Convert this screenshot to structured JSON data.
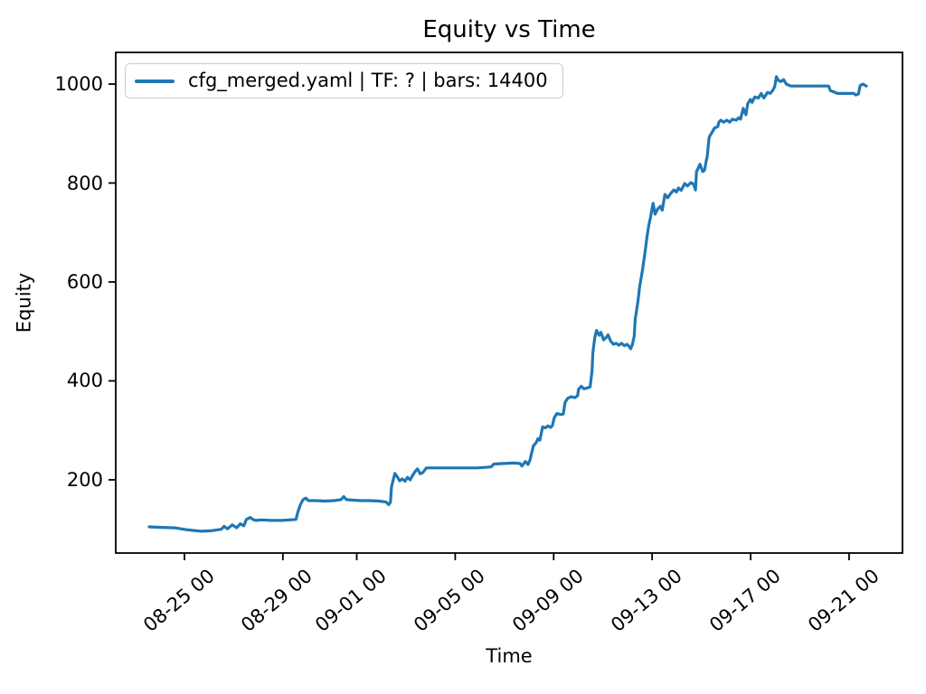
{
  "figure": {
    "title": "Equity vs Time",
    "xlabel": "Time",
    "ylabel": "Equity",
    "legend": {
      "label": "cfg_merged.yaml | TF: ? | bars: 14400",
      "line_color": "#1f77b4"
    }
  },
  "chart_data": {
    "type": "line",
    "title": "Equity vs Time",
    "xlabel": "Time",
    "ylabel": "Equity",
    "grid": false,
    "legend_position": "upper left",
    "x_unit": "days relative to 08-25 00:00",
    "xlim": [
      -2.79,
      29.17
    ],
    "ylim": [
      52,
      1064
    ],
    "x_ticks": [
      {
        "t": 0,
        "label": "08-25 00"
      },
      {
        "t": 4,
        "label": "08-29 00"
      },
      {
        "t": 7,
        "label": "09-01 00"
      },
      {
        "t": 11,
        "label": "09-05 00"
      },
      {
        "t": 15,
        "label": "09-09 00"
      },
      {
        "t": 19,
        "label": "09-13 00"
      },
      {
        "t": 23,
        "label": "09-17 00"
      },
      {
        "t": 27,
        "label": "09-21 00"
      }
    ],
    "y_ticks": [
      200,
      400,
      600,
      800,
      1000
    ],
    "series": [
      {
        "name": "cfg_merged.yaml | TF: ? | bars: 14400",
        "color": "#1f77b4",
        "points": [
          [
            -1.43,
            105
          ],
          [
            -1.06,
            104
          ],
          [
            -0.4,
            103
          ],
          [
            0.11,
            99
          ],
          [
            0.69,
            96
          ],
          [
            1.06,
            97
          ],
          [
            1.5,
            100
          ],
          [
            1.61,
            106
          ],
          [
            1.75,
            101
          ],
          [
            1.94,
            109
          ],
          [
            2.12,
            103
          ],
          [
            2.27,
            111
          ],
          [
            2.41,
            107
          ],
          [
            2.52,
            120
          ],
          [
            2.67,
            124
          ],
          [
            2.78,
            120
          ],
          [
            2.89,
            118
          ],
          [
            3.14,
            119
          ],
          [
            3.51,
            118
          ],
          [
            3.98,
            118
          ],
          [
            4.53,
            120
          ],
          [
            4.61,
            135
          ],
          [
            4.71,
            150
          ],
          [
            4.82,
            160
          ],
          [
            4.93,
            163
          ],
          [
            5.04,
            158
          ],
          [
            5.34,
            158
          ],
          [
            5.7,
            157
          ],
          [
            6.07,
            158
          ],
          [
            6.36,
            160
          ],
          [
            6.47,
            166
          ],
          [
            6.58,
            160
          ],
          [
            6.8,
            159
          ],
          [
            7.16,
            158
          ],
          [
            7.53,
            158
          ],
          [
            7.9,
            157
          ],
          [
            8.19,
            155
          ],
          [
            8.3,
            150
          ],
          [
            8.37,
            155
          ],
          [
            8.41,
            185
          ],
          [
            8.48,
            200
          ],
          [
            8.55,
            213
          ],
          [
            8.66,
            205
          ],
          [
            8.74,
            198
          ],
          [
            8.85,
            202
          ],
          [
            8.96,
            197
          ],
          [
            9.06,
            205
          ],
          [
            9.17,
            200
          ],
          [
            9.28,
            210
          ],
          [
            9.39,
            218
          ],
          [
            9.47,
            222
          ],
          [
            9.58,
            212
          ],
          [
            9.69,
            215
          ],
          [
            9.83,
            224
          ],
          [
            10.45,
            224
          ],
          [
            11.18,
            224
          ],
          [
            11.91,
            224
          ],
          [
            12.46,
            226
          ],
          [
            12.57,
            232
          ],
          [
            13.01,
            233
          ],
          [
            13.38,
            234
          ],
          [
            13.63,
            233
          ],
          [
            13.71,
            228
          ],
          [
            13.85,
            237
          ],
          [
            13.96,
            231
          ],
          [
            14.04,
            240
          ],
          [
            14.11,
            255
          ],
          [
            14.18,
            269
          ],
          [
            14.29,
            275
          ],
          [
            14.36,
            283
          ],
          [
            14.44,
            280
          ],
          [
            14.55,
            307
          ],
          [
            14.66,
            305
          ],
          [
            14.77,
            309
          ],
          [
            14.88,
            306
          ],
          [
            14.95,
            310
          ],
          [
            15.02,
            325
          ],
          [
            15.13,
            334
          ],
          [
            15.28,
            332
          ],
          [
            15.39,
            333
          ],
          [
            15.46,
            356
          ],
          [
            15.57,
            365
          ],
          [
            15.72,
            368
          ],
          [
            15.86,
            366
          ],
          [
            15.97,
            370
          ],
          [
            16.01,
            383
          ],
          [
            16.12,
            389
          ],
          [
            16.23,
            384
          ],
          [
            16.37,
            386
          ],
          [
            16.48,
            388
          ],
          [
            16.56,
            420
          ],
          [
            16.59,
            457
          ],
          [
            16.67,
            487
          ],
          [
            16.74,
            502
          ],
          [
            16.85,
            492
          ],
          [
            16.92,
            498
          ],
          [
            17.03,
            483
          ],
          [
            17.14,
            488
          ],
          [
            17.21,
            493
          ],
          [
            17.32,
            480
          ],
          [
            17.43,
            474
          ],
          [
            17.54,
            476
          ],
          [
            17.65,
            472
          ],
          [
            17.76,
            476
          ],
          [
            17.87,
            471
          ],
          [
            17.98,
            474
          ],
          [
            18.06,
            470
          ],
          [
            18.13,
            465
          ],
          [
            18.2,
            474
          ],
          [
            18.27,
            490
          ],
          [
            18.31,
            524
          ],
          [
            18.42,
            560
          ],
          [
            18.49,
            590
          ],
          [
            18.6,
            622
          ],
          [
            18.71,
            660
          ],
          [
            18.79,
            690
          ],
          [
            18.86,
            713
          ],
          [
            18.93,
            730
          ],
          [
            19.04,
            759
          ],
          [
            19.12,
            737
          ],
          [
            19.23,
            748
          ],
          [
            19.34,
            753
          ],
          [
            19.41,
            745
          ],
          [
            19.52,
            777
          ],
          [
            19.63,
            770
          ],
          [
            19.74,
            778
          ],
          [
            19.88,
            786
          ],
          [
            19.99,
            782
          ],
          [
            20.07,
            790
          ],
          [
            20.18,
            785
          ],
          [
            20.32,
            799
          ],
          [
            20.43,
            794
          ],
          [
            20.58,
            801
          ],
          [
            20.69,
            797
          ],
          [
            20.76,
            786
          ],
          [
            20.8,
            823
          ],
          [
            20.87,
            830
          ],
          [
            20.94,
            838
          ],
          [
            21.02,
            828
          ],
          [
            21.05,
            823
          ],
          [
            21.13,
            826
          ],
          [
            21.2,
            845
          ],
          [
            21.24,
            854
          ],
          [
            21.31,
            890
          ],
          [
            21.35,
            896
          ],
          [
            21.42,
            901
          ],
          [
            21.53,
            911
          ],
          [
            21.67,
            914
          ],
          [
            21.71,
            923
          ],
          [
            21.79,
            927
          ],
          [
            21.9,
            923
          ],
          [
            22.04,
            927
          ],
          [
            22.15,
            923
          ],
          [
            22.26,
            929
          ],
          [
            22.41,
            927
          ],
          [
            22.52,
            932
          ],
          [
            22.59,
            929
          ],
          [
            22.7,
            951
          ],
          [
            22.77,
            942
          ],
          [
            22.81,
            938
          ],
          [
            22.88,
            960
          ],
          [
            22.99,
            969
          ],
          [
            23.06,
            963
          ],
          [
            23.17,
            974
          ],
          [
            23.32,
            972
          ],
          [
            23.43,
            981
          ],
          [
            23.54,
            972
          ],
          [
            23.69,
            983
          ],
          [
            23.8,
            981
          ],
          [
            23.91,
            988
          ],
          [
            23.98,
            995
          ],
          [
            24.05,
            1015
          ],
          [
            24.12,
            1008
          ],
          [
            24.23,
            1005
          ],
          [
            24.34,
            1009
          ],
          [
            24.45,
            1000
          ],
          [
            24.63,
            996
          ],
          [
            25.07,
            996
          ],
          [
            25.62,
            996
          ],
          [
            26.17,
            996
          ],
          [
            26.24,
            987
          ],
          [
            26.39,
            984
          ],
          [
            26.53,
            981
          ],
          [
            26.9,
            981
          ],
          [
            27.19,
            981
          ],
          [
            27.27,
            978
          ],
          [
            27.38,
            980
          ],
          [
            27.45,
            997
          ],
          [
            27.56,
            1000
          ],
          [
            27.7,
            996
          ]
        ]
      }
    ]
  }
}
